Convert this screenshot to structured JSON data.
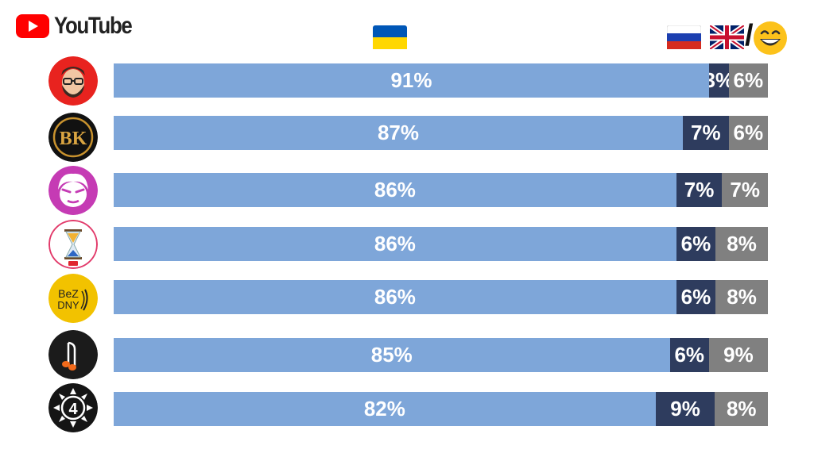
{
  "header": {
    "brand": "YouTube",
    "columns": [
      {
        "icon": "ukraine-flag-icon"
      },
      {
        "icon": "russia-flag-icon"
      },
      {
        "icon": "uk-flag-icon"
      },
      {
        "separator": "/"
      },
      {
        "icon": "grinning-emoji-icon"
      }
    ]
  },
  "colors": {
    "ukrainian": "#7ea6d9",
    "russian": "#2e3c5e",
    "english_or_other": "#808080",
    "brand_red": "#ff0000"
  },
  "chart_data": {
    "type": "bar",
    "orientation": "horizontal",
    "stacked": true,
    "normalized_to_percent": true,
    "categories": [
      {
        "avatar": "channel-avatar-bearded-man-red"
      },
      {
        "avatar": "channel-avatar-bk-logo"
      },
      {
        "avatar": "channel-avatar-cartoon-face-pink"
      },
      {
        "avatar": "channel-avatar-hourglass"
      },
      {
        "avatar": "channel-avatar-bez-dnyu"
      },
      {
        "avatar": "channel-avatar-music-note"
      },
      {
        "avatar": "channel-avatar-number-4"
      }
    ],
    "series": [
      {
        "values": [
          91,
          87,
          86,
          86,
          86,
          85,
          82
        ],
        "labels": [
          "91%",
          "87%",
          "86%",
          "86%",
          "86%",
          "85%",
          "82%"
        ]
      },
      {
        "values": [
          3,
          7,
          7,
          6,
          6,
          6,
          9
        ],
        "labels": [
          "3%",
          "7%",
          "7%",
          "6%",
          "6%",
          "6%",
          "9%"
        ]
      },
      {
        "values": [
          6,
          6,
          7,
          8,
          8,
          9,
          8
        ],
        "labels": [
          "6%",
          "6%",
          "7%",
          "8%",
          "8%",
          "9%",
          "8%"
        ]
      }
    ],
    "legend": "icons-above-columns",
    "grid": false
  }
}
